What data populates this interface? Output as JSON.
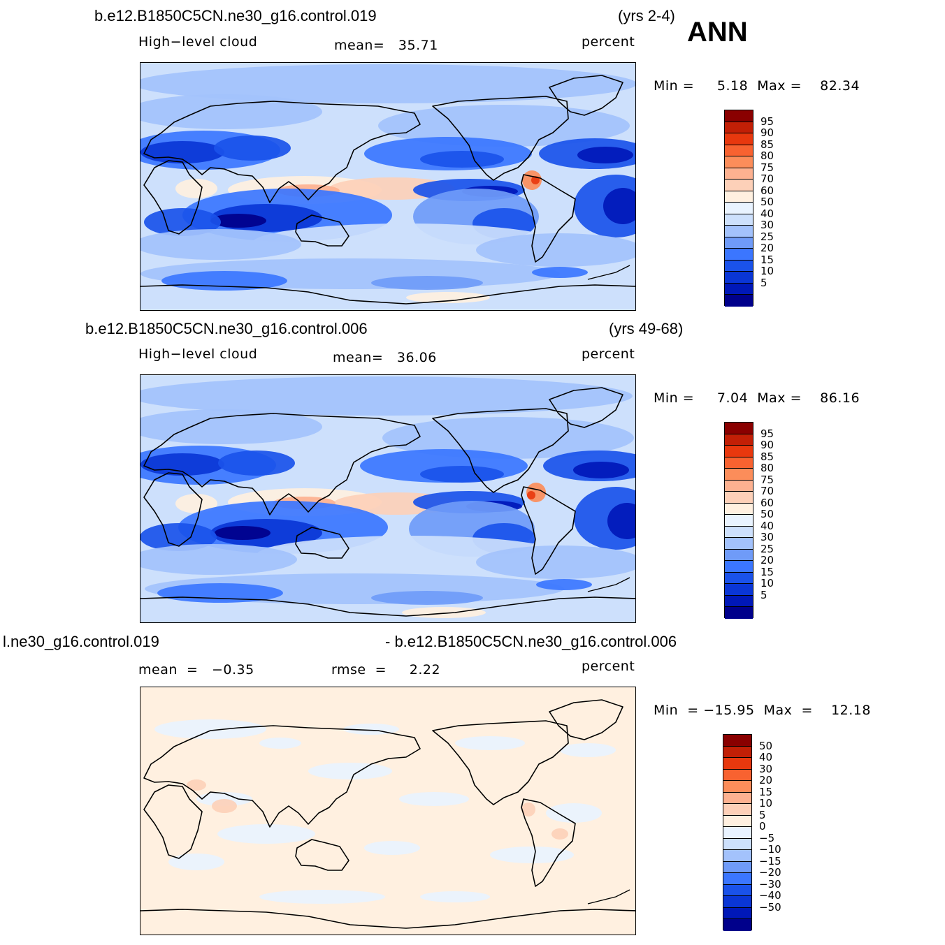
{
  "season": "ANN",
  "colors": {
    "seq": [
      "#00008b",
      "#0018b8",
      "#0a36d6",
      "#1a52ea",
      "#3b76ff",
      "#6f9bf8",
      "#a3c2fc",
      "#cde0fc",
      "#e9f3ff",
      "#fff0e0",
      "#fdd0b8",
      "#fdb190",
      "#fc8d5a",
      "#f86230",
      "#e8380e",
      "#c21f06",
      "#8a0000"
    ],
    "diff": [
      "#00008b",
      "#0018b8",
      "#0a36d6",
      "#1a52ea",
      "#3b76ff",
      "#6f9bf8",
      "#a3c2fc",
      "#cde0fc",
      "#e9f3ff",
      "#fff0e0",
      "#fdd0b8",
      "#fdb190",
      "#fc8d5a",
      "#f86230",
      "#e8380e",
      "#c21f06",
      "#8a0000"
    ]
  },
  "panels": [
    {
      "case": "b.e12.B1850C5CN.ne30_g16.control.019",
      "years": "(yrs 2-4)",
      "variable": "High−level  cloud",
      "stat1": "mean=   35.71",
      "units": "percent",
      "minmax": "Min =     5.18  Max =    82.34",
      "levels": [
        "95",
        "90",
        "85",
        "80",
        "75",
        "70",
        "60",
        "50",
        "40",
        "30",
        "25",
        "20",
        "15",
        "10",
        "5"
      ],
      "map_type": "seq"
    },
    {
      "case": "b.e12.B1850C5CN.ne30_g16.control.006",
      "years": "(yrs 49-68)",
      "variable": "High−level  cloud",
      "stat1": "mean=   36.06",
      "units": "percent",
      "minmax": "Min =     7.04  Max =    86.16",
      "levels": [
        "95",
        "90",
        "85",
        "80",
        "75",
        "70",
        "60",
        "50",
        "40",
        "30",
        "25",
        "20",
        "15",
        "10",
        "5"
      ],
      "map_type": "seq"
    },
    {
      "case_left": "l.ne30_g16.control.019",
      "case_right": "- b.e12.B1850C5CN.ne30_g16.control.006",
      "stat1": "mean  =   −0.35",
      "stat2": "rmse  =     2.22",
      "units": "percent",
      "minmax": "Min  = −15.95  Max  =    12.18",
      "levels": [
        "50",
        "40",
        "30",
        "20",
        "15",
        "10",
        "5",
        "0",
        "−5",
        "−10",
        "−15",
        "−20",
        "−30",
        "−40",
        "−50"
      ],
      "map_type": "diff"
    }
  ]
}
